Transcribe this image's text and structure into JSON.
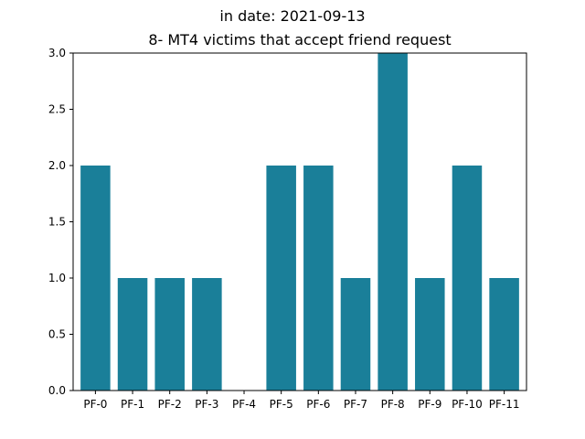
{
  "chart_data": {
    "type": "bar",
    "suptitle": "in date: 2021-09-13",
    "title": "8- MT4 victims that accept friend request",
    "categories": [
      "PF-0",
      "PF-1",
      "PF-2",
      "PF-3",
      "PF-4",
      "PF-5",
      "PF-6",
      "PF-7",
      "PF-8",
      "PF-9",
      "PF-10",
      "PF-11"
    ],
    "values": [
      2,
      1,
      1,
      1,
      0,
      2,
      2,
      1,
      3,
      1,
      2,
      1
    ],
    "ylim": [
      0,
      3.0
    ],
    "yticks": [
      "0.0",
      "0.5",
      "1.0",
      "1.5",
      "2.0",
      "2.5",
      "3.0"
    ],
    "bar_color": "#1a7f99",
    "xlabel": "",
    "ylabel": "",
    "grid": false
  }
}
